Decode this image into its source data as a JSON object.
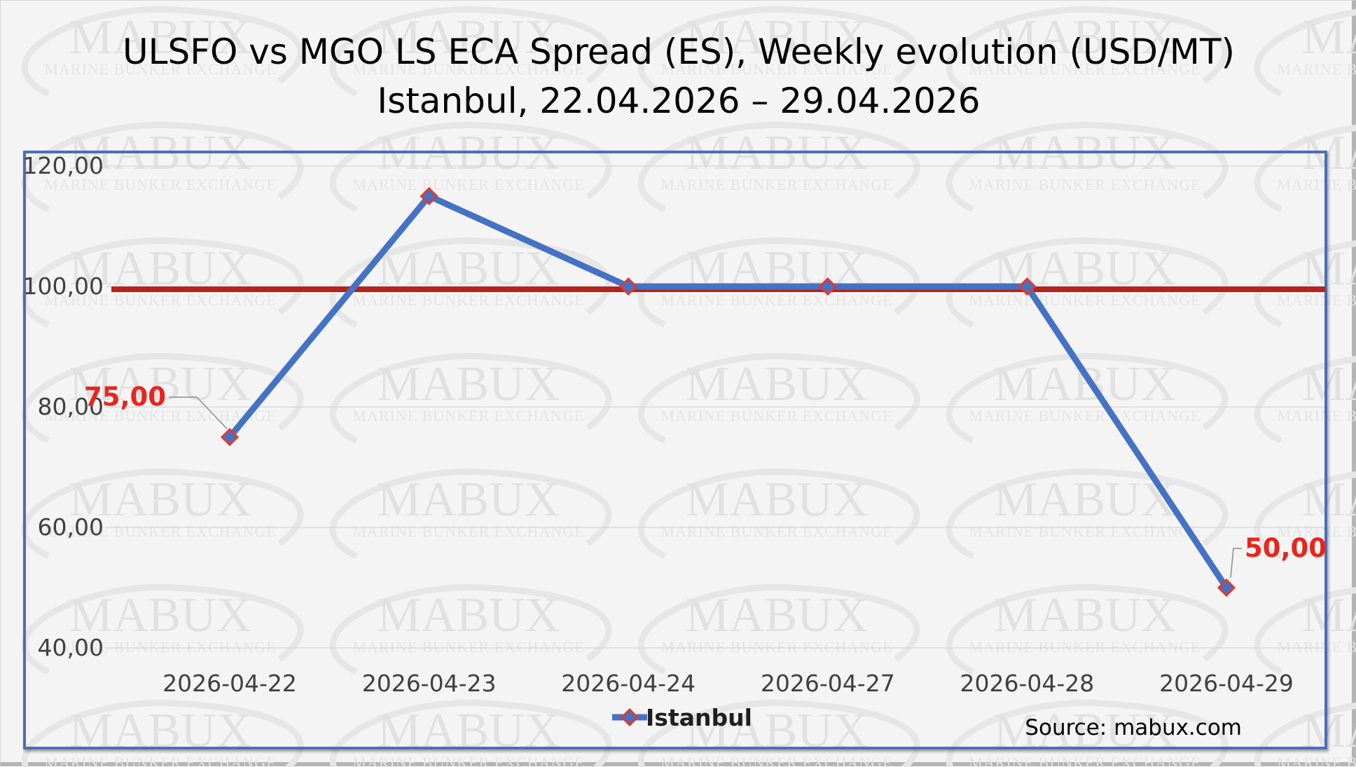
{
  "chart_data": {
    "type": "line",
    "title": "ULSFO vs MGO LS ECA Spread (ES), Weekly evolution (USD/MT)",
    "subtitle": "Istanbul, 22.04.2026 – 29.04.2026",
    "categories": [
      "2026-04-22",
      "2026-04-23",
      "2026-04-24",
      "2026-04-27",
      "2026-04-28",
      "2026-04-29"
    ],
    "series": [
      {
        "name": "Istanbul",
        "values": [
          75,
          115,
          100,
          100,
          100,
          50
        ],
        "color": "#4472c4",
        "marker_color": "#e03a2f"
      }
    ],
    "reference_line": {
      "value": 100,
      "color": "#b5231b"
    },
    "y_ticks": [
      "40,00",
      "60,00",
      "80,00",
      "100,00",
      "120,00"
    ],
    "ylim": [
      40,
      120
    ],
    "data_labels": [
      {
        "category": "2026-04-22",
        "text": "75,00"
      },
      {
        "category": "2026-04-29",
        "text": "50,00"
      }
    ],
    "grid": true,
    "legend_position": "bottom",
    "xlabel": "",
    "ylabel": ""
  },
  "legend": {
    "label": "Istanbul"
  },
  "source": "Source: mabux.com",
  "watermark": {
    "word": "MABUX",
    "subtitle": "MARINE BUNKER EXCHANGE"
  },
  "colors": {
    "frame_border": "#4a6fb5",
    "background": "#f4f4f4",
    "gridline": "#d9d9d9"
  }
}
